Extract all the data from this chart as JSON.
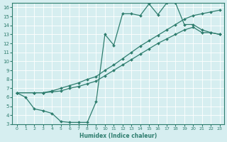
{
  "line1_x": [
    0,
    1,
    2,
    3,
    4,
    5,
    6,
    7,
    8,
    9,
    10,
    11,
    12,
    13,
    14,
    15,
    16,
    17,
    18,
    19,
    20,
    21,
    22,
    23
  ],
  "line1_y": [
    6.5,
    6.0,
    4.7,
    4.5,
    4.2,
    3.3,
    3.2,
    3.2,
    3.2,
    5.5,
    13.0,
    11.8,
    15.3,
    15.3,
    15.1,
    16.4,
    15.2,
    16.5,
    16.5,
    14.1,
    14.1,
    13.5,
    13.2,
    13.0
  ],
  "line2_x": [
    0,
    2,
    3,
    4,
    5,
    6,
    7,
    8,
    9,
    10,
    11,
    12,
    13,
    14,
    15,
    16,
    17,
    18,
    19,
    20,
    21,
    22,
    23
  ],
  "line2_y": [
    6.5,
    6.5,
    6.5,
    6.6,
    6.7,
    7.0,
    7.2,
    7.5,
    7.8,
    8.4,
    9.0,
    9.6,
    10.2,
    10.8,
    11.4,
    12.0,
    12.5,
    13.0,
    13.5,
    13.8,
    13.2,
    13.2,
    13.0
  ],
  "line3_x": [
    0,
    2,
    3,
    4,
    5,
    6,
    7,
    8,
    9,
    10,
    11,
    12,
    13,
    14,
    15,
    16,
    17,
    18,
    19,
    20,
    21,
    22,
    23
  ],
  "line3_y": [
    6.5,
    6.5,
    6.5,
    6.7,
    7.0,
    7.3,
    7.6,
    8.0,
    8.3,
    9.0,
    9.6,
    10.3,
    11.0,
    11.7,
    12.3,
    12.9,
    13.5,
    14.1,
    14.7,
    15.1,
    15.3,
    15.5,
    15.7
  ],
  "line_color": "#2e7d6e",
  "bg_color": "#d6eef0",
  "grid_color": "#ffffff",
  "xlabel": "Humidex (Indice chaleur)",
  "xlim": [
    -0.5,
    23.5
  ],
  "ylim": [
    3,
    16.5
  ],
  "xticks": [
    0,
    1,
    2,
    3,
    4,
    5,
    6,
    7,
    8,
    9,
    10,
    11,
    12,
    13,
    14,
    15,
    16,
    17,
    18,
    19,
    20,
    21,
    22,
    23
  ],
  "yticks": [
    3,
    4,
    5,
    6,
    7,
    8,
    9,
    10,
    11,
    12,
    13,
    14,
    15,
    16
  ]
}
